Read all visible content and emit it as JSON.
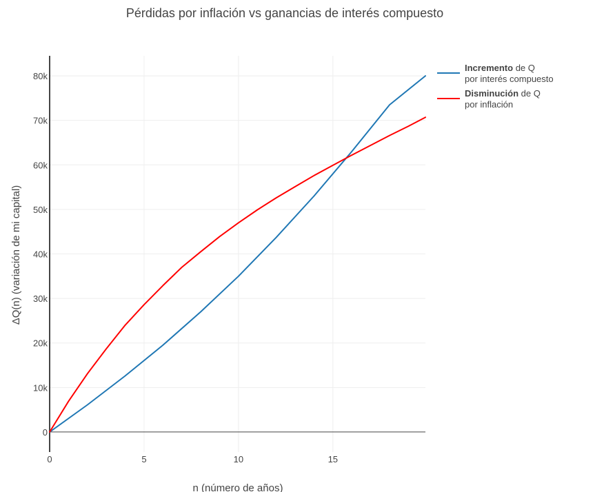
{
  "chart_data": {
    "type": "line",
    "title": "Pérdidas por inflación vs ganancias de interés compuesto",
    "xlabel": "n (número de años)",
    "ylabel": "ΔQ(n) (variación de mi capital)",
    "xlim": [
      0,
      19.9
    ],
    "ylim": [
      -4500,
      84500
    ],
    "x_ticks": [
      0,
      5,
      10,
      15
    ],
    "x_tick_labels": [
      "0",
      "5",
      "10",
      "15"
    ],
    "y_ticks": [
      0,
      10000,
      20000,
      30000,
      40000,
      50000,
      60000,
      70000,
      80000
    ],
    "y_tick_labels": [
      "0",
      "10k",
      "20k",
      "30k",
      "40k",
      "50k",
      "60k",
      "70k",
      "80k"
    ],
    "grid": true,
    "legend_position": "right",
    "series": [
      {
        "name_bold": "Incremento",
        "name_rest": " de Q",
        "name_line2": "por interés compuesto",
        "color": "#1f77b4",
        "x": [
          0,
          2,
          4,
          6,
          8,
          10,
          12,
          14,
          16,
          18,
          19.9
        ],
        "y": [
          0,
          6100,
          12600,
          19500,
          27000,
          35000,
          43700,
          53000,
          63000,
          73500,
          80000
        ]
      },
      {
        "name_bold": "Disminución",
        "name_rest": " de Q",
        "name_line2": " por inflación",
        "color": "#ff0000",
        "x": [
          0,
          1,
          2,
          3,
          4,
          5,
          6,
          7,
          8,
          9,
          10,
          11,
          12,
          13,
          14,
          15,
          16,
          17,
          18,
          19,
          19.9
        ],
        "y": [
          0,
          6900,
          13100,
          18700,
          24000,
          28600,
          32900,
          37000,
          40500,
          43900,
          47000,
          49900,
          52600,
          55100,
          57600,
          59900,
          62200,
          64400,
          66600,
          68700,
          70700
        ]
      }
    ]
  }
}
